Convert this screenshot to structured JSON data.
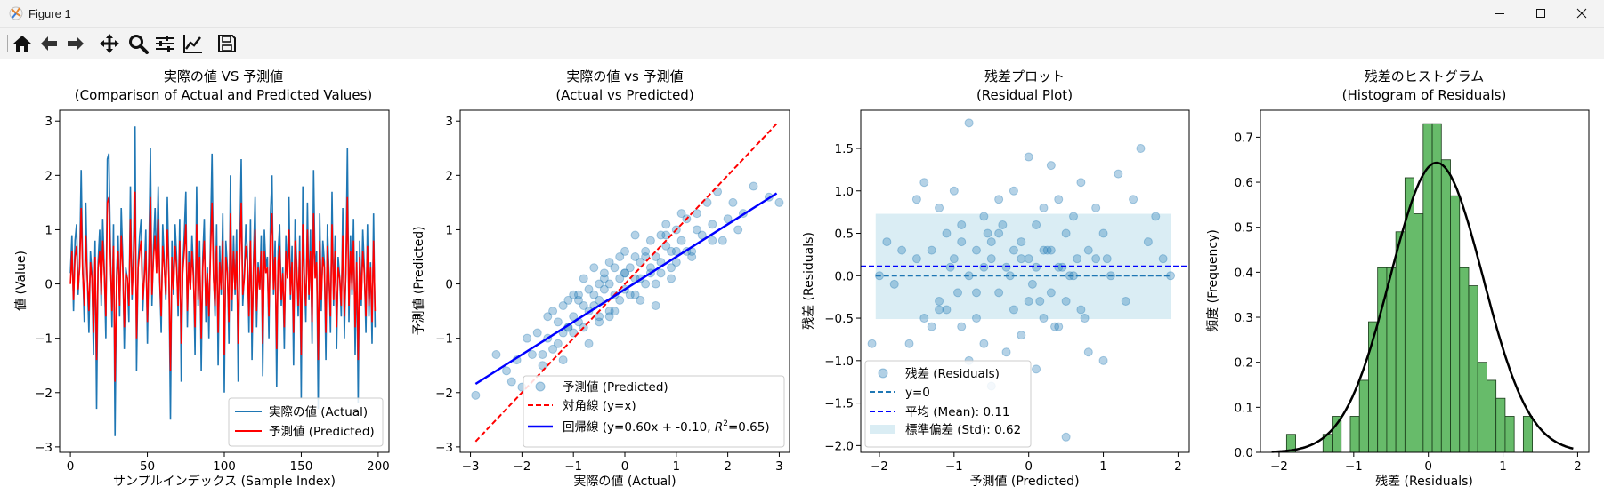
{
  "window": {
    "title": "Figure 1"
  },
  "toolbar": {
    "buttons": [
      {
        "name": "home-button",
        "icon": "home-icon"
      },
      {
        "name": "back-button",
        "icon": "arrow-left-icon"
      },
      {
        "name": "forward-button",
        "icon": "arrow-right-icon"
      },
      {
        "name": "pan-button",
        "icon": "move-icon"
      },
      {
        "name": "zoom-button",
        "icon": "magnifier-icon"
      },
      {
        "name": "subplots-button",
        "icon": "sliders-icon"
      },
      {
        "name": "axes-button",
        "icon": "line-chart-icon"
      },
      {
        "name": "save-button",
        "icon": "floppy-disk-icon"
      }
    ]
  },
  "colors": {
    "actual": "#1f77b4",
    "predicted": "#ff0000",
    "diagonal": "#ff0000",
    "regression": "#0000ff",
    "scatter": "#1f77b4",
    "zero_line": "#1f77b4",
    "mean_line": "#0000ff",
    "std_band": "#add8e6",
    "hist": "#4caf50",
    "kde": "#000000"
  },
  "chart_data": [
    {
      "type": "line",
      "title": "実際の値 VS 予測値",
      "subtitle": "(Comparison of Actual and Predicted Values)",
      "xlabel": "サンプルインデックス (Sample Index)",
      "ylabel": "値 (Value)",
      "xlim": [
        -7,
        207
      ],
      "ylim": [
        -3.1,
        3.2
      ],
      "xticks": [
        0,
        50,
        100,
        150,
        200
      ],
      "yticks": [
        -3,
        -2,
        -1,
        0,
        1,
        2,
        3
      ],
      "legend": {
        "placement": "lower-right",
        "entries": [
          "実際の値 (Actual)",
          "予測値 (Predicted)"
        ]
      },
      "series": [
        {
          "name": "実際の値 (Actual)",
          "values": [
            0.2,
            0.9,
            -0.5,
            0.8,
            1.1,
            -0.2,
            0.4,
            2.1,
            0.3,
            -0.7,
            1.5,
            0.1,
            -0.9,
            0.6,
            0.2,
            -1.3,
            0.8,
            -2.3,
            0.4,
            1.0,
            -0.4,
            1.2,
            0.3,
            -1.0,
            2.3,
            2.4,
            0.6,
            -0.8,
            1.1,
            -2.8,
            0.2,
            0.9,
            -0.6,
            1.4,
            0.5,
            -1.2,
            0.3,
            0.1,
            -0.7,
            1.8,
            -0.3,
            0.6,
            2.9,
            -1.6,
            0.4,
            0.9,
            1.2,
            -0.5,
            0.2,
            1.0,
            -1.1,
            0.6,
            2.5,
            -0.4,
            0.7,
            1.4,
            0.3,
            1.8,
            0.1,
            -0.9,
            1.1,
            0.4,
            -0.3,
            1.6,
            0.2,
            -2.5,
            0.8,
            -0.2,
            1.1,
            0.5,
            -0.6,
            1.2,
            -1.8,
            0.3,
            0.9,
            1.7,
            -0.8,
            0.6,
            -0.1,
            0.9,
            0.2,
            -1.3,
            1.8,
            -0.4,
            0.8,
            -1.6,
            0.5,
            1.2,
            -0.7,
            0.3,
            -1.0,
            0.8,
            2.4,
            0.2,
            -0.6,
            1.1,
            -1.5,
            0.7,
            -0.2,
            1.3,
            -2.0,
            0.8,
            0.3,
            -1.1,
            2.0,
            -0.5,
            0.9,
            -0.2,
            1.0,
            -1.8,
            0.6,
            2.3,
            -0.4,
            0.2,
            1.1,
            0.6,
            -0.9,
            1.2,
            -1.4,
            0.5,
            1.6,
            -0.8,
            0.4,
            -0.1,
            0.9,
            -1.7,
            1.0,
            0.3,
            0.5,
            -1.0,
            1.3,
            2.0,
            -0.2,
            0.8,
            -1.9,
            0.6,
            1.1,
            -0.4,
            0.3,
            -1.2,
            0.9,
            0.1,
            1.6,
            -0.3,
            0.7,
            -1.5,
            1.2,
            0.4,
            -0.6,
            0.9,
            -2.1,
            1.8,
            0.2,
            -0.7,
            1.5,
            -0.3,
            1.0,
            -1.1,
            2.1,
            0.2,
            0.6,
            -2.3,
            1.3,
            -0.5,
            0.8,
            0.4,
            -1.4,
            1.1,
            0.2,
            -0.9,
            1.7,
            -0.4,
            0.9,
            -1.2,
            0.5,
            0.1,
            -0.6,
            1.4,
            -1.0,
            0.3,
            2.5,
            -0.7,
            0.9,
            -0.2,
            1.2,
            -1.3,
            0.6,
            -2.2,
            0.8,
            -0.4,
            1.0,
            0.3,
            -0.9,
            1.1,
            -0.6,
            0.4,
            -1.1,
            1.3,
            -0.8
          ]
        },
        {
          "name": "予測値 (Predicted)",
          "values": [
            0.0,
            0.6,
            -0.3,
            0.5,
            0.7,
            -0.1,
            0.3,
            1.4,
            0.2,
            -0.4,
            0.9,
            0.1,
            -0.5,
            0.4,
            0.1,
            -0.9,
            0.5,
            -1.4,
            0.3,
            0.6,
            -0.2,
            0.8,
            0.2,
            -0.6,
            1.5,
            1.6,
            0.4,
            -0.5,
            0.7,
            -1.8,
            0.1,
            0.6,
            -0.4,
            0.9,
            0.3,
            -0.8,
            0.2,
            0.1,
            -0.4,
            1.2,
            -0.2,
            0.4,
            1.7,
            -1.0,
            0.3,
            0.6,
            0.8,
            -0.3,
            0.1,
            0.6,
            -0.7,
            0.4,
            1.6,
            -0.2,
            0.5,
            0.9,
            0.2,
            1.2,
            0.1,
            -0.6,
            0.7,
            0.3,
            -0.2,
            1.0,
            0.1,
            -1.6,
            0.5,
            -0.1,
            0.7,
            0.3,
            -0.4,
            0.8,
            -1.1,
            0.2,
            0.6,
            1.1,
            -0.5,
            0.4,
            -0.1,
            0.6,
            0.1,
            -0.8,
            1.1,
            -0.3,
            0.5,
            -1.0,
            0.3,
            0.8,
            -0.4,
            0.2,
            -0.6,
            0.5,
            1.5,
            0.1,
            -0.4,
            0.7,
            -0.9,
            0.4,
            -0.1,
            0.8,
            -1.3,
            0.5,
            0.2,
            -0.7,
            1.3,
            -0.3,
            0.6,
            -0.1,
            0.6,
            -1.1,
            0.4,
            1.5,
            -0.2,
            0.1,
            0.7,
            0.4,
            -0.6,
            0.8,
            -0.9,
            0.3,
            1.0,
            -0.5,
            0.3,
            -0.1,
            0.6,
            -1.1,
            0.6,
            0.2,
            0.3,
            -0.6,
            0.8,
            1.3,
            -0.1,
            0.5,
            -1.2,
            0.4,
            0.7,
            -0.3,
            0.2,
            -0.8,
            0.6,
            0.1,
            1.0,
            -0.2,
            0.4,
            -0.9,
            0.8,
            0.3,
            -0.4,
            0.6,
            -1.3,
            1.1,
            0.1,
            -0.4,
            1.0,
            -0.2,
            0.6,
            -0.7,
            1.3,
            0.1,
            0.4,
            -1.4,
            0.8,
            -0.3,
            0.5,
            0.3,
            -0.9,
            0.7,
            0.1,
            -0.6,
            1.1,
            -0.3,
            0.6,
            -0.8,
            0.3,
            0.1,
            -0.4,
            0.9,
            -0.6,
            0.2,
            1.6,
            -0.4,
            0.6,
            -0.1,
            0.8,
            -0.8,
            0.4,
            -1.4,
            0.5,
            -0.3,
            0.6,
            0.2,
            -0.6,
            0.7,
            -0.4,
            0.3,
            -0.7,
            0.8,
            -0.5
          ]
        }
      ]
    },
    {
      "type": "scatter",
      "title": "実際の値 vs 予測値",
      "subtitle": "(Actual vs Predicted)",
      "xlabel": "実際の値 (Actual)",
      "ylabel": "予測値 (Predicted)",
      "xlim": [
        -3.2,
        3.2
      ],
      "ylim": [
        -3.1,
        3.2
      ],
      "xticks": [
        -3,
        -2,
        -1,
        0,
        1,
        2,
        3
      ],
      "yticks": [
        -3,
        -2,
        -1,
        0,
        1,
        2,
        3
      ],
      "legend": {
        "placement": "lower-right",
        "entries": [
          "予測値 (Predicted)",
          "対角線 (y=x)",
          "回帰線 (y=0.60x + -0.10, R²=0.65)"
        ]
      },
      "regression_label_main": "回帰線 (y=0.60x + -0.10, ",
      "regression_label_r2": "=0.65)",
      "diagonal": {
        "from": [
          -2.9,
          -2.9
        ],
        "to": [
          2.95,
          2.95
        ]
      },
      "regression": {
        "slope": 0.6,
        "intercept": -0.1,
        "r2": 0.65,
        "xrange": [
          -2.9,
          2.95
        ]
      },
      "points": {
        "x": [
          -2.9,
          -2.5,
          -2.3,
          -2.1,
          -2.0,
          -1.9,
          -1.8,
          -1.7,
          -1.6,
          -1.5,
          -1.5,
          -1.4,
          -1.3,
          -1.3,
          -1.2,
          -1.2,
          -1.1,
          -1.1,
          -1.0,
          -1.0,
          -0.9,
          -0.9,
          -0.8,
          -0.8,
          -0.7,
          -0.7,
          -0.6,
          -0.6,
          -0.5,
          -0.5,
          -0.5,
          -0.4,
          -0.4,
          -0.3,
          -0.3,
          -0.3,
          -0.2,
          -0.2,
          -0.1,
          -0.1,
          0.0,
          0.0,
          0.0,
          0.1,
          0.1,
          0.2,
          0.2,
          0.2,
          0.3,
          0.3,
          0.4,
          0.4,
          0.5,
          0.5,
          0.6,
          0.6,
          0.7,
          0.7,
          0.8,
          0.8,
          0.9,
          0.9,
          1.0,
          1.0,
          1.1,
          1.2,
          1.3,
          1.4,
          1.5,
          1.6,
          1.7,
          1.8,
          1.9,
          2.0,
          2.1,
          2.2,
          2.3,
          2.5,
          2.8,
          3.0,
          -1.4,
          -0.8,
          -0.2,
          0.3,
          0.9,
          -1.1,
          -0.6,
          0.0,
          0.6,
          1.2,
          -1.6,
          -1.0,
          -0.4,
          0.2,
          0.8,
          1.4,
          -2.2,
          -1.2,
          -0.5,
          0.4,
          1.0,
          1.7,
          -0.9,
          -0.3,
          0.5,
          1.1,
          -0.7,
          -0.1,
          0.7,
          1.3
        ],
        "y": [
          -2.05,
          -1.3,
          -1.6,
          -1.4,
          -1.9,
          -1.0,
          -1.3,
          -0.9,
          -1.5,
          -0.6,
          -1.0,
          -0.5,
          -1.1,
          -0.7,
          -0.4,
          -0.9,
          -0.3,
          -0.8,
          -0.2,
          -0.6,
          -0.3,
          -0.7,
          0.1,
          -0.4,
          -0.1,
          -0.5,
          0.3,
          -0.2,
          0.0,
          -0.3,
          -0.7,
          0.2,
          -0.1,
          0.4,
          0.0,
          -0.5,
          0.3,
          -0.2,
          0.5,
          0.1,
          0.2,
          -0.1,
          0.6,
          0.3,
          -0.2,
          0.5,
          0.1,
          0.9,
          0.4,
          -0.3,
          0.6,
          0.0,
          0.8,
          0.3,
          0.5,
          -0.4,
          0.9,
          0.2,
          0.7,
          1.1,
          0.6,
          0.1,
          1.0,
          0.4,
          0.8,
          1.2,
          0.6,
          1.3,
          0.9,
          1.5,
          1.1,
          1.7,
          0.8,
          1.2,
          1.5,
          1.0,
          1.3,
          1.8,
          1.6,
          1.5,
          -1.2,
          -0.8,
          -0.5,
          0.1,
          0.3,
          -0.8,
          -0.4,
          0.2,
          0.0,
          0.6,
          -1.3,
          -0.9,
          0.1,
          -0.2,
          0.9,
          1.0,
          -1.8,
          -1.4,
          -0.6,
          0.5,
          0.6,
          0.8,
          -0.2,
          -0.6,
          0.2,
          1.3,
          -1.1,
          -0.3,
          0.4,
          0.5
        ]
      }
    },
    {
      "type": "scatter",
      "title": "残差プロット",
      "subtitle": "(Residual Plot)",
      "xlabel": "予測値 (Predicted)",
      "ylabel": "残差 (Residuals)",
      "xlim": [
        -2.25,
        2.15
      ],
      "ylim": [
        -2.08,
        1.95
      ],
      "xticks": [
        -2,
        -1,
        0,
        1,
        2
      ],
      "yticks": [
        -2.0,
        -1.5,
        -1.0,
        -0.5,
        0.0,
        0.5,
        1.0,
        1.5
      ],
      "legend": {
        "placement": "lower-left",
        "entries": [
          "残差 (Residuals)",
          "y=0",
          "平均 (Mean): 0.11",
          "標準偏差 (Std): 0.62"
        ]
      },
      "mean": 0.11,
      "std": 0.62,
      "band_xrange": [
        -2.05,
        1.9
      ],
      "points": {
        "x": [
          -2.1,
          -2.0,
          -1.9,
          -1.8,
          -1.7,
          -1.6,
          -1.5,
          -1.5,
          -1.4,
          -1.4,
          -1.3,
          -1.3,
          -1.2,
          -1.2,
          -1.1,
          -1.1,
          -1.0,
          -1.0,
          -0.9,
          -0.9,
          -0.8,
          -0.8,
          -0.8,
          -0.7,
          -0.7,
          -0.6,
          -0.6,
          -0.6,
          -0.5,
          -0.5,
          -0.4,
          -0.4,
          -0.4,
          -0.3,
          -0.3,
          -0.2,
          -0.2,
          -0.2,
          -0.1,
          -0.1,
          0.0,
          0.0,
          0.0,
          0.1,
          0.1,
          0.1,
          0.2,
          0.2,
          0.3,
          0.3,
          0.3,
          0.4,
          0.4,
          0.4,
          0.5,
          0.5,
          0.5,
          0.6,
          0.6,
          0.7,
          0.7,
          0.8,
          0.8,
          0.9,
          0.9,
          1.0,
          1.0,
          1.1,
          1.2,
          1.3,
          1.4,
          1.5,
          1.6,
          1.7,
          1.8,
          1.9,
          -1.2,
          -0.9,
          -0.7,
          -0.35,
          -0.1,
          0.05,
          0.2,
          0.45,
          0.55,
          -0.95,
          -0.5,
          0.15,
          0.65,
          -0.25,
          0.35,
          -1.05,
          -0.55,
          0.25,
          0.75,
          1.05
        ],
        "y": [
          -0.8,
          0.0,
          0.4,
          -0.1,
          0.3,
          -0.8,
          0.9,
          0.2,
          -0.5,
          1.1,
          0.3,
          -0.6,
          0.8,
          -0.3,
          0.5,
          -0.4,
          1.0,
          0.2,
          -0.6,
          0.6,
          0.0,
          -1.0,
          1.8,
          0.3,
          -0.5,
          0.7,
          0.1,
          -0.8,
          -1.3,
          0.2,
          0.9,
          -0.2,
          0.5,
          0.1,
          -0.9,
          1.0,
          0.3,
          -0.4,
          0.4,
          -0.7,
          1.4,
          0.2,
          -0.3,
          0.6,
          -1.1,
          0.1,
          0.8,
          -0.5,
          0.3,
          1.3,
          -0.2,
          0.9,
          0.1,
          -0.6,
          0.5,
          -0.3,
          -1.9,
          0.7,
          0.0,
          1.1,
          -0.4,
          0.3,
          -0.9,
          0.8,
          0.2,
          0.5,
          -1.0,
          0.0,
          1.2,
          -0.3,
          0.9,
          1.5,
          0.4,
          0.7,
          0.2,
          0.0,
          -0.4,
          0.4,
          -0.2,
          0.6,
          0.2,
          -0.1,
          0.3,
          0.1,
          0.0,
          -0.2,
          0.4,
          -0.3,
          0.2,
          0.0,
          -0.6,
          0.1,
          0.5,
          0.3,
          -0.5,
          0.2
        ]
      }
    },
    {
      "type": "bar",
      "title": "残差のヒストグラム",
      "subtitle": "(Histogram of Residuals)",
      "xlabel": "残差 (Residuals)",
      "ylabel": "頻度 (Frequency)",
      "xlim": [
        -2.25,
        2.15
      ],
      "ylim": [
        0,
        0.76
      ],
      "xticks": [
        -2,
        -1,
        0,
        1,
        2
      ],
      "yticks": [
        0.0,
        0.1,
        0.2,
        0.3,
        0.4,
        0.5,
        0.6,
        0.7
      ],
      "bins_start": -1.9,
      "bin_width": 0.122,
      "values": [
        0.04,
        0.0,
        0.0,
        0.0,
        0.04,
        0.08,
        0.0,
        0.08,
        0.16,
        0.29,
        0.41,
        0.41,
        0.49,
        0.61,
        0.53,
        0.73,
        0.73,
        0.65,
        0.57,
        0.41,
        0.37,
        0.2,
        0.16,
        0.12,
        0.08,
        0.0,
        0.08
      ],
      "kde": {
        "mean": 0.11,
        "std": 0.62
      }
    }
  ]
}
